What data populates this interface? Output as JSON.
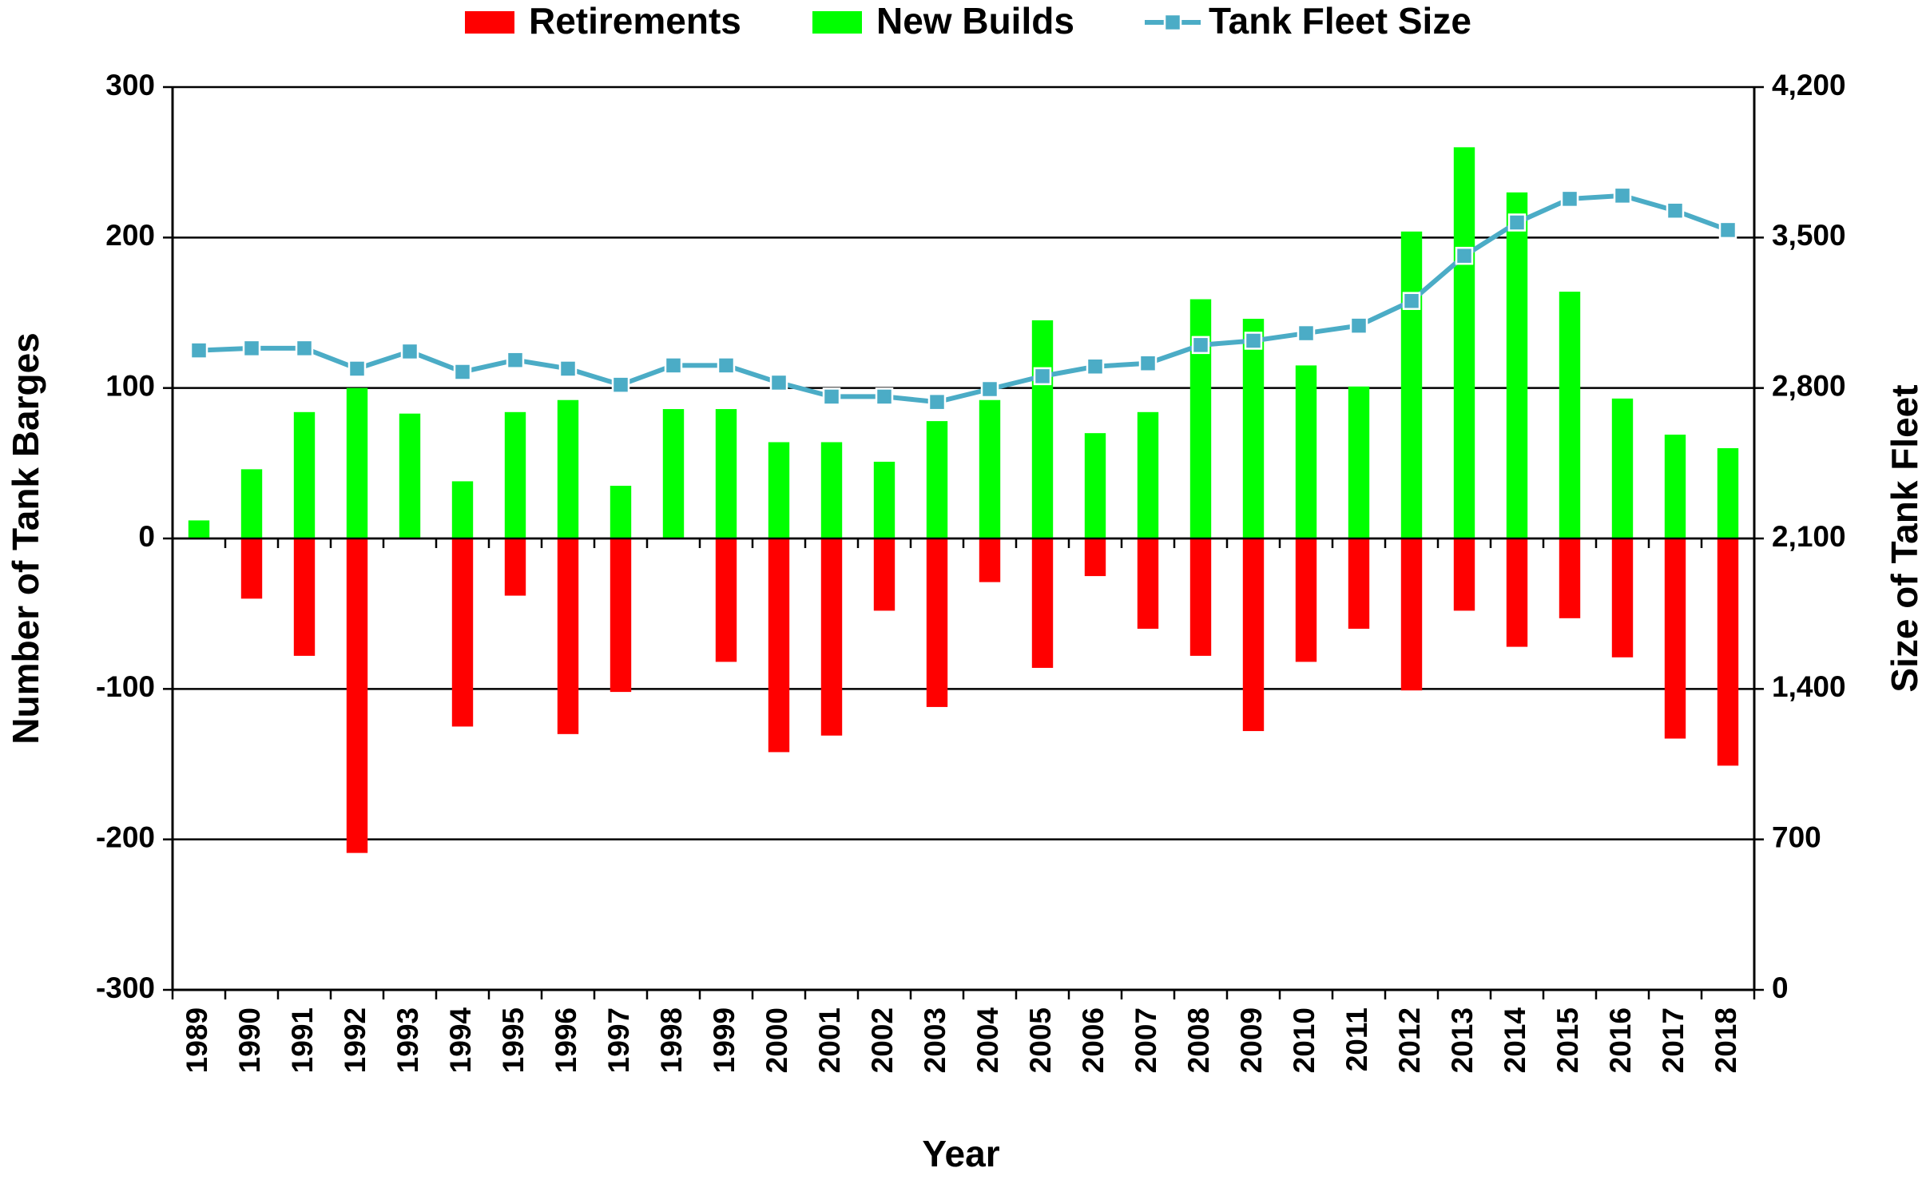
{
  "chart_data": {
    "type": "bar",
    "x_label": "Year",
    "y_label": "Number of Tank Barges",
    "y2_label": "Size of Tank Fleet",
    "legend": "top",
    "grid": true,
    "categories": [
      "1989",
      "1990",
      "1991",
      "1992",
      "1993",
      "1994",
      "1995",
      "1996",
      "1997",
      "1998",
      "1999",
      "2000",
      "2001",
      "2002",
      "2003",
      "2004",
      "2005",
      "2006",
      "2007",
      "2008",
      "2009",
      "2010",
      "2011",
      "2012",
      "2013",
      "2014",
      "2015",
      "2016",
      "2017",
      "2018"
    ],
    "series": [
      {
        "name": "Retirements",
        "type": "bar",
        "color": "#ff0000",
        "values": [
          0,
          -40,
          -78,
          -209,
          0,
          -125,
          -38,
          -130,
          -102,
          0,
          -82,
          -142,
          -131,
          -48,
          -112,
          -29,
          -86,
          -25,
          -60,
          -78,
          -128,
          -82,
          -60,
          -101,
          -48,
          -72,
          -53,
          -79,
          -133,
          -151
        ]
      },
      {
        "name": "New Builds",
        "type": "bar",
        "color": "#00ff00",
        "values": [
          12,
          46,
          84,
          100,
          83,
          38,
          84,
          92,
          35,
          86,
          86,
          64,
          64,
          51,
          78,
          92,
          145,
          70,
          84,
          159,
          146,
          115,
          101,
          204,
          260,
          230,
          164,
          93,
          69,
          60
        ]
      },
      {
        "name": "Tank Fleet Size",
        "type": "line",
        "color": "#4bacc6",
        "axis": "y2",
        "values": [
          2975,
          2985,
          2985,
          2890,
          2970,
          2875,
          2930,
          2890,
          2815,
          2905,
          2905,
          2825,
          2760,
          2760,
          2735,
          2795,
          2855,
          2900,
          2915,
          3000,
          3020,
          3055,
          3090,
          3205,
          3415,
          3570,
          3680,
          3695,
          3625,
          3535
        ]
      }
    ],
    "ylim": [
      -300,
      300
    ],
    "yticks": [
      -300,
      -200,
      -100,
      0,
      100,
      200,
      300
    ],
    "y2lim": [
      0,
      4200
    ],
    "y2ticks": [
      0,
      700,
      {
        "value": 1400,
        "label": "1,400"
      },
      {
        "value": 2100,
        "label": "2,100"
      },
      {
        "value": 2800,
        "label": "2,800"
      },
      {
        "value": 3500,
        "label": "3,500"
      },
      {
        "value": 4200,
        "label": "4,200"
      }
    ]
  }
}
